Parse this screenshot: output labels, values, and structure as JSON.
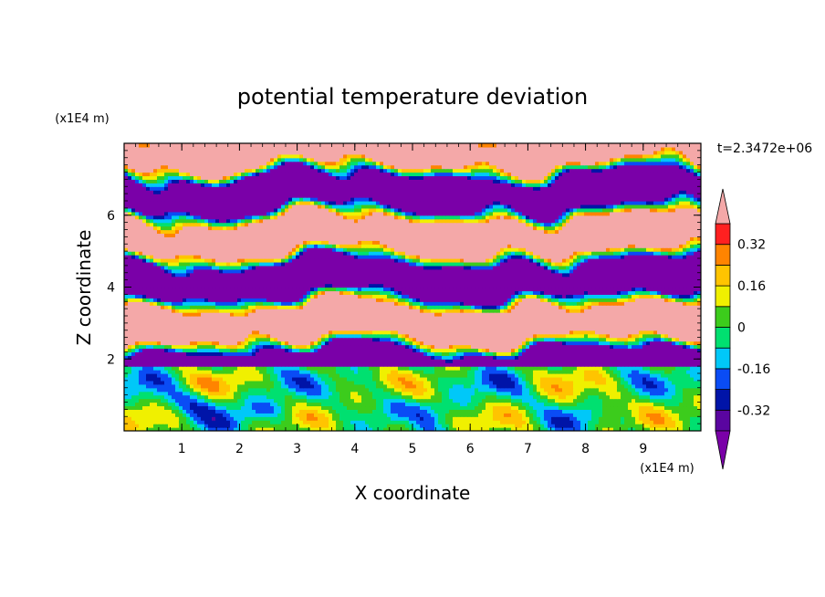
{
  "chart_data": {
    "type": "heatmap",
    "title": "potential temperature deviation",
    "xlabel": "X coordinate",
    "ylabel": "Z coordinate",
    "x_unit": "(x1E4 m)",
    "y_unit": "(x1E4 m)",
    "time_label": "t=2.3472e+06",
    "xlim": [
      0,
      10
    ],
    "ylim": [
      0,
      8
    ],
    "x_ticks": [
      "1",
      "2",
      "3",
      "4",
      "5",
      "6",
      "7",
      "8",
      "9"
    ],
    "y_ticks": [
      "2",
      "4",
      "6"
    ],
    "colorbar": {
      "labels": [
        "0.32",
        "0.16",
        "0",
        "-0.16",
        "-0.32"
      ],
      "levels": [
        -0.4,
        -0.32,
        -0.24,
        -0.16,
        -0.08,
        0,
        0.08,
        0.16,
        0.24,
        0.32,
        0.4
      ],
      "colors": [
        "#7a00a8",
        "#5a05a0",
        "#0014a8",
        "#0a4cf5",
        "#00c8f8",
        "#00e070",
        "#3ccc1c",
        "#f0f000",
        "#ffc400",
        "#ff8400",
        "#ff2020",
        "#f4a8a8"
      ],
      "extend": "both"
    },
    "field_description_layers": [
      {
        "z_range": [
          0,
          1.8
        ],
        "dominant_values": [
          -0.32,
          -0.16,
          0,
          0.16
        ],
        "pattern": "convective eddies"
      },
      {
        "z_range": [
          1.8,
          8
        ],
        "dominant_values": [
          -0.4,
          0.4
        ],
        "pattern": "stratified filaments"
      }
    ]
  },
  "colors": {
    "background": "#ffffff",
    "frame": "#000000"
  }
}
